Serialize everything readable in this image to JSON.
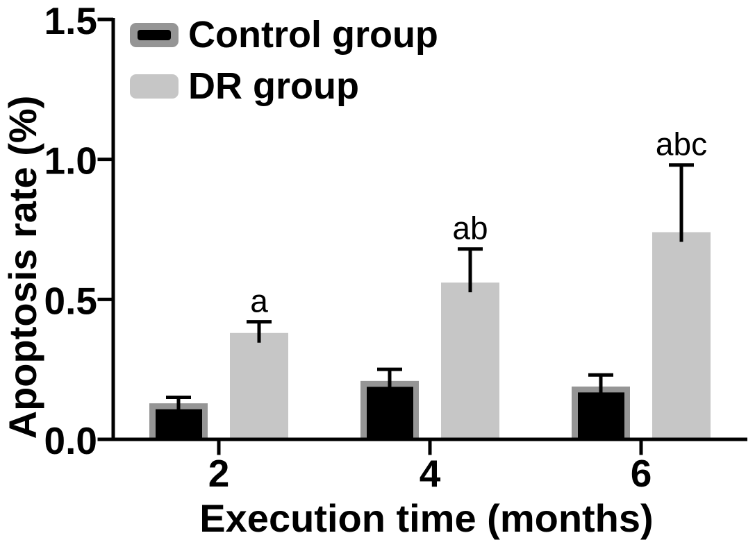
{
  "figure": {
    "background": "#ffffff",
    "text_color": "#000000"
  },
  "chart_data": {
    "type": "bar",
    "title": "",
    "xlabel": "Execution time (months)",
    "ylabel": "Apoptosis rate (%)",
    "x_categories": [
      "2",
      "4",
      "6"
    ],
    "y_ticks": [
      "0.0",
      "0.5",
      "1.0",
      "1.5"
    ],
    "ylim": [
      0,
      1.5
    ],
    "grid": false,
    "legend_position": "top-left",
    "axis_color": "#000000",
    "error_bar_color": "#000000",
    "series": [
      {
        "name": "Control group",
        "fill": "#000000",
        "edge": "#959595",
        "values": [
          0.12,
          0.2,
          0.18
        ],
        "errors_plus": [
          0.03,
          0.05,
          0.05
        ],
        "annotations": [
          "",
          "",
          ""
        ]
      },
      {
        "name": "DR group",
        "fill": "#c6c6c6",
        "edge": "",
        "values": [
          0.38,
          0.56,
          0.74
        ],
        "errors_plus": [
          0.04,
          0.12,
          0.24
        ],
        "annotations": [
          "a",
          "ab",
          "abc"
        ]
      }
    ]
  }
}
